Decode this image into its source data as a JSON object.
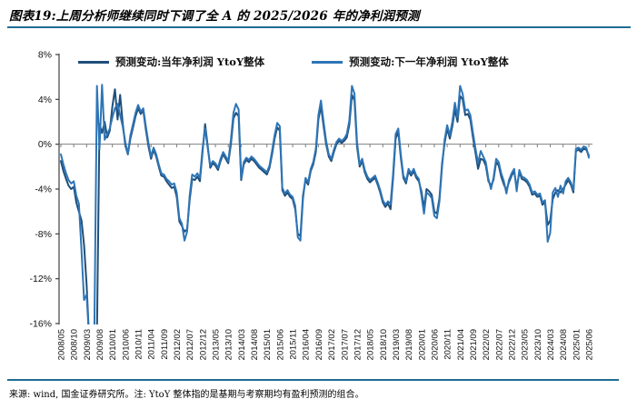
{
  "title": "图表19:上周分析师继续同时下调了全 A 的 2025/2026 年的净利润预测",
  "footer": "来源: wind, 国金证券研究所。注: YtoY 整体指的是基期与考察期均有盈利预测的组合。",
  "colors": {
    "rule": "#1f6d94",
    "axis": "#404040",
    "zero_line": "#7f7f7f",
    "series_current_year": "#1f4e79",
    "series_next_year": "#2e75b6"
  },
  "chart_data": {
    "type": "line",
    "x_start": "2008/05",
    "x_monthly": true,
    "grid": "zero-line-only",
    "legend_position": "top-center",
    "ylim": [
      -16,
      8
    ],
    "y_tick_values": [
      8,
      4,
      0,
      -4,
      -8,
      -12,
      -16
    ],
    "y_tick_labels": [
      "8%",
      "4%",
      "0%",
      "-4%",
      "-8%",
      "-12%",
      "-16%"
    ],
    "x_tick_labels": [
      "2008/05",
      "2008/10",
      "2009/03",
      "2009/08",
      "2010/01",
      "2010/06",
      "2010/11",
      "2011/04",
      "2011/09",
      "2012/02",
      "2012/07",
      "2012/12",
      "2013/05",
      "2013/10",
      "2014/03",
      "2014/08",
      "2015/01",
      "2015/06",
      "2015/11",
      "2016/04",
      "2016/09",
      "2017/02",
      "2017/07",
      "2017/12",
      "2018/05",
      "2018/10",
      "2019/03",
      "2019/08",
      "2020/01",
      "2020/06",
      "2020/11",
      "2021/04",
      "2021/09",
      "2022/02",
      "2022/07",
      "2022/12",
      "2023/05",
      "2023/10",
      "2024/03",
      "2024/08",
      "2025/01",
      "2025/06"
    ],
    "series": [
      {
        "name": "预测变动:当年净利润 YtoY整体",
        "color": "#1f4e79",
        "values": [
          -1.5,
          -2.4,
          -3.1,
          -3.7,
          -4.0,
          -3.8,
          -5.2,
          -6.0,
          -6.8,
          -9.0,
          -12.5,
          -17.5,
          -17.8,
          -17.8,
          -17.0,
          1.8,
          1.0,
          2.0,
          0.6,
          1.2,
          3.4,
          4.9,
          2.2,
          4.4,
          1.9,
          -0.1,
          -0.9,
          0.5,
          1.5,
          2.5,
          3.2,
          2.7,
          3.0,
          1.3,
          -0.2,
          -1.3,
          -0.5,
          -1.1,
          -2.0,
          -2.8,
          -2.9,
          -3.3,
          -3.6,
          -3.9,
          -3.8,
          -4.7,
          -6.9,
          -7.3,
          -7.8,
          -7.6,
          -5.0,
          -3.1,
          -3.2,
          -2.9,
          -3.3,
          -0.7,
          1.8,
          -0.1,
          -2.1,
          -1.7,
          -1.9,
          -2.3,
          -1.5,
          -0.9,
          -1.3,
          -1.7,
          0.0,
          2.3,
          2.8,
          2.5,
          -3.2,
          -1.8,
          -1.4,
          -1.6,
          -1.3,
          -1.5,
          -1.8,
          -2.1,
          -2.3,
          -2.5,
          -2.7,
          -2.1,
          -0.9,
          0.5,
          1.5,
          1.2,
          -4.1,
          -4.6,
          -4.3,
          -4.7,
          -4.9,
          -5.8,
          -8.0,
          -8.2,
          -4.6,
          -3.2,
          -3.6,
          -2.4,
          -1.8,
          -0.7,
          2.2,
          3.4,
          1.6,
          0.0,
          -1.1,
          -1.5,
          -0.7,
          0.0,
          0.3,
          0.1,
          0.3,
          0.6,
          1.7,
          4.4,
          3.9,
          -0.2,
          -2.0,
          -1.5,
          -2.5,
          -3.1,
          -3.4,
          -3.2,
          -3.0,
          -3.6,
          -4.3,
          -5.2,
          -5.6,
          -5.3,
          -5.8,
          -3.0,
          0.5,
          1.1,
          -1.2,
          -3.0,
          -3.5,
          -2.4,
          -2.8,
          -2.4,
          -3.0,
          -3.3,
          -4.2,
          -5.7,
          -4.0,
          -4.2,
          -4.5,
          -6.0,
          -6.2,
          -4.8,
          -1.7,
          0.1,
          1.4,
          0.5,
          1.6,
          3.1,
          2.0,
          4.3,
          4.0,
          2.6,
          2.7,
          2.2,
          0.6,
          -0.8,
          -2.2,
          -1.3,
          -1.4,
          -1.9,
          -3.3,
          -3.7,
          -3.2,
          -1.6,
          -1.9,
          -2.9,
          -3.6,
          -4.1,
          -3.4,
          -2.8,
          -2.4,
          -3.9,
          -2.5,
          -3.1,
          -3.2,
          -3.4,
          -3.8,
          -4.5,
          -4.4,
          -4.7,
          -4.6,
          -5.4,
          -5.2,
          -7.2,
          -6.8,
          -4.9,
          -4.3,
          -4.1,
          -4.3,
          -4.0,
          -3.6,
          -3.2,
          -3.6,
          -4.3,
          -0.6,
          -0.5,
          -0.7,
          -0.4,
          -0.5,
          -1.0
        ]
      },
      {
        "name": "预测变动:下一年净利润 YtoY整体",
        "color": "#2e75b6",
        "values": [
          -0.9,
          -1.8,
          -2.6,
          -3.2,
          -3.5,
          -3.3,
          -4.6,
          -5.3,
          -9.5,
          -13.9,
          -13.4,
          -17.5,
          -17.5,
          -17.0,
          5.2,
          -0.4,
          5.3,
          0.4,
          0.9,
          1.4,
          2.4,
          3.2,
          3.6,
          2.6,
          1.6,
          0.2,
          -0.9,
          0.8,
          1.8,
          2.8,
          3.5,
          2.9,
          3.2,
          1.6,
          0.1,
          -1.1,
          -0.3,
          -0.9,
          -1.8,
          -2.6,
          -2.7,
          -3.1,
          -3.3,
          -3.6,
          -3.5,
          -4.3,
          -6.6,
          -7.1,
          -8.6,
          -7.8,
          -4.6,
          -2.7,
          -2.9,
          -2.6,
          -3.0,
          -0.4,
          1.4,
          -0.3,
          -1.9,
          -1.5,
          -1.7,
          -2.1,
          -1.3,
          -0.7,
          -1.1,
          -1.5,
          0.4,
          2.8,
          3.6,
          3.1,
          -3.0,
          -1.6,
          -1.2,
          -1.4,
          -1.1,
          -1.3,
          -1.6,
          -1.9,
          -2.1,
          -2.3,
          -2.5,
          -1.9,
          -0.6,
          0.8,
          1.9,
          1.6,
          -3.9,
          -4.4,
          -4.1,
          -4.5,
          -4.7,
          -5.5,
          -8.3,
          -8.6,
          -4.9,
          -3.0,
          -3.4,
          -2.2,
          -1.6,
          -0.4,
          2.6,
          3.9,
          2.0,
          0.3,
          -0.9,
          -1.3,
          -0.5,
          0.2,
          0.5,
          0.3,
          0.5,
          0.9,
          2.1,
          5.2,
          4.5,
          0.2,
          -1.8,
          -1.3,
          -2.3,
          -2.9,
          -3.2,
          -3.0,
          -2.8,
          -3.4,
          -4.1,
          -5.0,
          -5.4,
          -5.1,
          -5.3,
          -2.6,
          0.9,
          1.4,
          -0.9,
          -2.8,
          -3.3,
          -2.2,
          -2.6,
          -2.2,
          -2.8,
          -3.1,
          -4.6,
          -6.2,
          -4.3,
          -4.5,
          -4.8,
          -6.4,
          -6.6,
          -5.1,
          -2.0,
          0.4,
          1.7,
          0.8,
          2.0,
          3.7,
          2.4,
          5.2,
          4.5,
          3.0,
          3.1,
          2.6,
          1.0,
          -0.4,
          -1.7,
          -0.6,
          -1.1,
          -1.6,
          -3.1,
          -4.0,
          -3.0,
          -1.3,
          -1.6,
          -2.6,
          -3.3,
          -4.4,
          -3.2,
          -2.6,
          -2.2,
          -4.2,
          -2.3,
          -2.9,
          -3.0,
          -3.2,
          -3.6,
          -4.3,
          -4.2,
          -4.5,
          -4.4,
          -5.2,
          -5.0,
          -8.7,
          -7.9,
          -4.3,
          -3.9,
          -4.7,
          -3.7,
          -4.4,
          -3.3,
          -3.0,
          -3.4,
          -4.1,
          -0.4,
          -0.3,
          -0.5,
          -0.2,
          -0.3,
          -1.2
        ]
      }
    ]
  }
}
